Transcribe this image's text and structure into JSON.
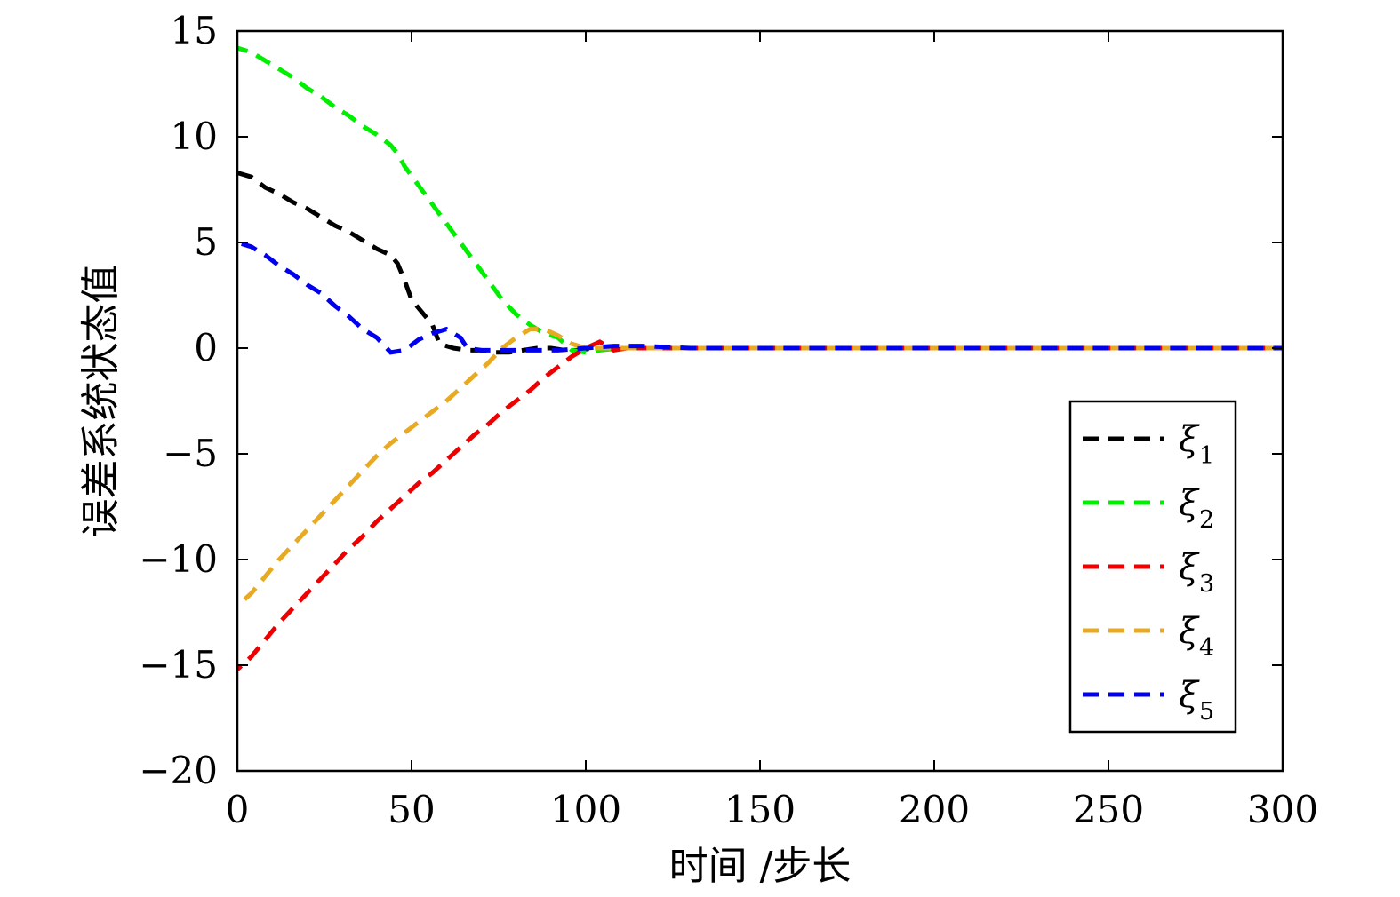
{
  "chart_data": {
    "type": "line",
    "xlabel": "时间 /步长",
    "ylabel": "误差系统状态值",
    "xlim": [
      0,
      300
    ],
    "ylim": [
      -20,
      15
    ],
    "xticks": [
      0,
      50,
      100,
      150,
      200,
      250,
      300
    ],
    "xtick_labels": [
      "0",
      "50",
      "100",
      "150",
      "200",
      "250",
      "300"
    ],
    "yticks": [
      15,
      10,
      5,
      0,
      -5,
      -10,
      -15,
      -20
    ],
    "ytick_labels": [
      "15",
      "10",
      "5",
      "0",
      "−5",
      "−10",
      "−15",
      "−20"
    ],
    "grid": false,
    "legend_position": "lower-right",
    "line_style": "dashed",
    "series": [
      {
        "name": "ξ1",
        "symbol": "ξ",
        "sub": "1",
        "color": "#000000",
        "x": [
          0,
          4,
          8,
          12,
          16,
          20,
          24,
          28,
          32,
          36,
          40,
          44,
          46,
          48,
          50,
          52,
          54,
          56,
          58,
          62,
          66,
          70,
          74,
          78,
          82,
          86,
          90,
          94,
          98,
          102,
          108,
          116,
          125,
          140,
          300
        ],
        "y": [
          8.3,
          8.1,
          7.6,
          7.3,
          6.9,
          6.6,
          6.2,
          5.8,
          5.5,
          5.1,
          4.7,
          4.4,
          4.0,
          3.2,
          2.3,
          1.9,
          1.5,
          1.1,
          0.2,
          0.0,
          -0.1,
          -0.1,
          -0.2,
          -0.2,
          -0.1,
          0.0,
          0.0,
          -0.1,
          -0.1,
          0.0,
          0.0,
          0.0,
          0.0,
          0.0,
          0.0
        ]
      },
      {
        "name": "ξ2",
        "symbol": "ξ",
        "sub": "2",
        "color": "#00ee00",
        "x": [
          0,
          4,
          8,
          12,
          16,
          20,
          24,
          28,
          32,
          36,
          40,
          44,
          46,
          48,
          52,
          56,
          60,
          64,
          68,
          72,
          76,
          80,
          84,
          88,
          92,
          94,
          96,
          100,
          104,
          110,
          120,
          135,
          300
        ],
        "y": [
          14.2,
          14.0,
          13.6,
          13.2,
          12.8,
          12.3,
          11.9,
          11.4,
          11.0,
          10.5,
          10.1,
          9.6,
          9.2,
          8.6,
          7.7,
          6.8,
          5.9,
          5.0,
          4.1,
          3.2,
          2.3,
          1.6,
          1.1,
          0.7,
          0.5,
          0.2,
          -0.1,
          -0.2,
          -0.1,
          0.0,
          0.0,
          0.0,
          0.0
        ]
      },
      {
        "name": "ξ3",
        "symbol": "ξ",
        "sub": "3",
        "color": "#ee0000",
        "x": [
          0,
          4,
          8,
          12,
          16,
          20,
          24,
          28,
          32,
          36,
          40,
          44,
          48,
          52,
          56,
          60,
          64,
          68,
          72,
          76,
          80,
          84,
          88,
          92,
          96,
          100,
          104,
          106,
          108,
          112,
          120,
          135,
          300
        ],
        "y": [
          -15.2,
          -14.6,
          -13.8,
          -13.0,
          -12.3,
          -11.6,
          -10.9,
          -10.2,
          -9.5,
          -8.9,
          -8.2,
          -7.6,
          -7.0,
          -6.4,
          -5.9,
          -5.3,
          -4.7,
          -4.1,
          -3.6,
          -3.0,
          -2.5,
          -2.0,
          -1.4,
          -0.9,
          -0.4,
          0.0,
          0.3,
          0.1,
          -0.1,
          0.0,
          0.0,
          0.0,
          0.0
        ]
      },
      {
        "name": "ξ4",
        "symbol": "ξ",
        "sub": "4",
        "color": "#e8aa22",
        "x": [
          0,
          4,
          8,
          12,
          16,
          20,
          24,
          28,
          32,
          36,
          40,
          44,
          48,
          52,
          56,
          60,
          64,
          68,
          72,
          76,
          80,
          84,
          88,
          92,
          96,
          100,
          104,
          110,
          120,
          135,
          300
        ],
        "y": [
          -12.2,
          -11.6,
          -10.8,
          -10.0,
          -9.3,
          -8.6,
          -7.9,
          -7.2,
          -6.5,
          -5.8,
          -5.1,
          -4.5,
          -4.0,
          -3.5,
          -3.0,
          -2.5,
          -1.9,
          -1.3,
          -0.7,
          0.0,
          0.5,
          0.9,
          0.9,
          0.6,
          0.2,
          0.0,
          0.0,
          0.0,
          0.0,
          0.0,
          0.0
        ]
      },
      {
        "name": "ξ5",
        "symbol": "ξ",
        "sub": "5",
        "color": "#0000ee",
        "x": [
          0,
          4,
          8,
          12,
          16,
          20,
          24,
          28,
          32,
          36,
          40,
          44,
          48,
          52,
          56,
          60,
          64,
          66,
          70,
          76,
          84,
          92,
          100,
          108,
          116,
          130,
          300
        ],
        "y": [
          5.0,
          4.8,
          4.4,
          3.9,
          3.5,
          3.0,
          2.6,
          2.0,
          1.5,
          0.9,
          0.5,
          -0.2,
          -0.1,
          0.4,
          0.7,
          0.9,
          0.5,
          0.0,
          -0.1,
          -0.1,
          -0.1,
          -0.1,
          0.0,
          0.1,
          0.1,
          0.0,
          0.0
        ]
      }
    ]
  }
}
